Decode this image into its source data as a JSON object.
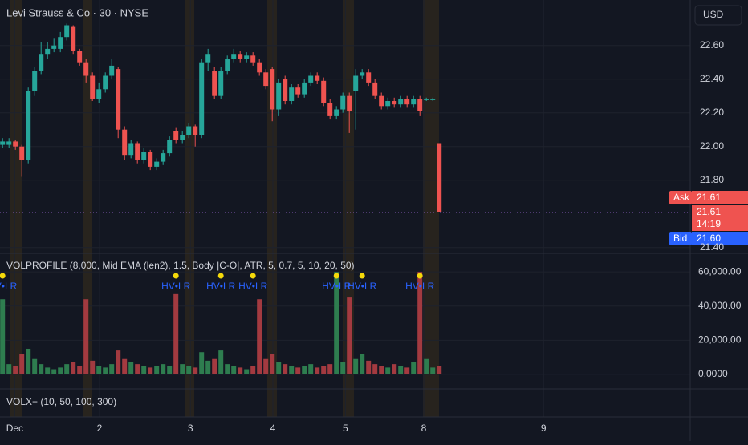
{
  "chart_data": [
    {
      "type": "candlestick",
      "title": "Levi Strauss & Co · 30 · NYSE",
      "open": [
        22.01,
        22.01,
        22.03,
        22.0,
        21.92,
        22.33,
        22.45,
        22.55,
        22.58,
        22.58,
        22.65,
        22.71,
        22.57,
        22.5,
        22.42,
        22.28,
        22.34,
        22.42,
        22.46,
        22.1,
        21.95,
        22.02,
        21.92,
        21.97,
        21.88,
        21.91,
        21.96,
        22.09,
        22.04,
        22.07,
        22.12,
        22.07,
        22.5,
        22.45,
        22.3,
        22.45,
        22.52,
        22.55,
        22.52,
        22.54,
        22.5,
        22.44,
        22.46,
        22.22,
        22.4,
        22.27,
        22.35,
        22.31,
        22.38,
        22.42,
        22.39,
        22.26,
        22.18,
        22.22,
        22.3,
        22.33,
        22.42,
        22.44,
        22.38,
        22.3,
        22.24,
        22.27,
        22.25,
        22.28,
        22.25,
        22.28,
        22.28,
        22.28,
        22.02
      ],
      "high": [
        22.05,
        22.05,
        22.04,
        22.01,
        22.35,
        22.47,
        22.62,
        22.62,
        22.64,
        22.68,
        22.73,
        22.72,
        22.58,
        22.52,
        22.44,
        22.38,
        22.44,
        22.52,
        22.47,
        22.12,
        22.04,
        22.03,
        21.99,
        21.98,
        21.93,
        21.98,
        22.06,
        22.11,
        22.09,
        22.14,
        22.13,
        22.52,
        22.58,
        22.47,
        22.47,
        22.54,
        22.58,
        22.57,
        22.56,
        22.56,
        22.52,
        22.46,
        22.47,
        22.4,
        22.42,
        22.37,
        22.37,
        22.4,
        22.44,
        22.44,
        22.41,
        22.28,
        22.24,
        22.32,
        22.32,
        22.46,
        22.46,
        22.46,
        22.4,
        22.32,
        22.29,
        22.29,
        22.3,
        22.3,
        22.3,
        22.3,
        22.29,
        22.29,
        22.02
      ],
      "low": [
        21.99,
        21.99,
        21.98,
        21.82,
        21.9,
        22.3,
        22.43,
        22.52,
        22.56,
        22.56,
        22.63,
        22.55,
        22.48,
        22.38,
        22.27,
        22.26,
        22.32,
        22.4,
        22.05,
        21.92,
        21.93,
        21.9,
        21.9,
        21.86,
        21.86,
        21.89,
        21.94,
        22.02,
        22.02,
        22.05,
        22.0,
        22.05,
        22.45,
        22.28,
        22.28,
        22.43,
        22.5,
        22.5,
        22.5,
        22.48,
        22.42,
        22.34,
        22.15,
        22.18,
        22.25,
        22.25,
        22.29,
        22.29,
        22.36,
        22.37,
        22.24,
        22.16,
        22.16,
        22.2,
        22.08,
        22.1,
        22.4,
        22.36,
        22.28,
        22.22,
        22.22,
        22.23,
        22.23,
        22.23,
        22.23,
        22.18,
        22.27,
        22.27,
        21.61
      ],
      "close": [
        22.03,
        22.03,
        22.0,
        21.92,
        22.33,
        22.45,
        22.55,
        22.58,
        22.6,
        22.65,
        22.72,
        22.57,
        22.5,
        22.42,
        22.28,
        22.34,
        22.42,
        22.48,
        22.1,
        21.95,
        22.02,
        21.92,
        21.97,
        21.88,
        21.91,
        21.96,
        22.04,
        22.04,
        22.07,
        22.12,
        22.07,
        22.5,
        22.55,
        22.3,
        22.45,
        22.52,
        22.55,
        22.52,
        22.54,
        22.5,
        22.44,
        22.36,
        22.22,
        22.38,
        22.27,
        22.35,
        22.31,
        22.38,
        22.42,
        22.39,
        22.26,
        22.18,
        22.22,
        22.3,
        22.21,
        22.42,
        22.44,
        22.38,
        22.3,
        22.24,
        22.27,
        22.25,
        22.28,
        22.25,
        22.28,
        22.21,
        22.28,
        22.28,
        21.61
      ],
      "up_color": "#26a69a",
      "down_color": "#ef5350",
      "xlim": [
        -0.4,
        107.1
      ],
      "xticks": [
        {
          "value": 1.9,
          "label": "Dec"
        },
        {
          "value": 15.1,
          "label": "2"
        },
        {
          "value": 29.25,
          "label": "3"
        },
        {
          "value": 42.1,
          "label": "4"
        },
        {
          "value": 53.4,
          "label": "5"
        },
        {
          "value": 65.6,
          "label": "8"
        },
        {
          "value": 84.25,
          "label": "9"
        }
      ],
      "ylim": [
        21.37,
        22.87
      ],
      "yticks": [
        {
          "value": 21.4,
          "label": "21.40"
        },
        {
          "value": 21.8,
          "label": "21.80"
        },
        {
          "value": 22.0,
          "label": "22.00"
        },
        {
          "value": 22.2,
          "label": "22.20"
        },
        {
          "value": 22.4,
          "label": "22.40"
        },
        {
          "value": 22.6,
          "label": "22.60"
        }
      ],
      "grid": true
    },
    {
      "type": "bar",
      "title": "VOLPROFILE (8,000, Mid EMA (len2), 1.5, Body |C-O|, ATR, 5, 0.7, 5, 10, 20, 50)",
      "values": [
        44000,
        6000,
        5000,
        12000,
        15000,
        9000,
        6000,
        4000,
        3000,
        4000,
        6000,
        7000,
        5000,
        44000,
        8000,
        5000,
        4000,
        6000,
        14000,
        9000,
        7000,
        6000,
        5000,
        4000,
        5000,
        6000,
        5000,
        47000,
        6000,
        5000,
        4000,
        13000,
        8000,
        9000,
        14000,
        6000,
        5000,
        4000,
        3000,
        5000,
        44000,
        9000,
        12000,
        7000,
        6000,
        5000,
        4000,
        5000,
        6000,
        4000,
        5000,
        6000,
        60000,
        7000,
        45000,
        9000,
        12000,
        8000,
        6000,
        5000,
        4000,
        6000,
        5000,
        4000,
        7000,
        60000,
        9000,
        4000,
        5000
      ],
      "up_color": "#2e7d4f",
      "down_color": "#a33a40",
      "ylim": [
        -8500,
        69000
      ],
      "yticks": [
        {
          "value": 0,
          "label": "0.0000"
        },
        {
          "value": 20000,
          "label": "20,000.00"
        },
        {
          "value": 40000,
          "label": "40,000.00"
        },
        {
          "value": 60000,
          "label": "60,000.00"
        }
      ],
      "annotations": [
        {
          "x": 0,
          "text": "HV•LR"
        },
        {
          "x": 27,
          "text": "HV•LR"
        },
        {
          "x": 34,
          "text": "HV•LR"
        },
        {
          "x": 39,
          "text": "HV•LR"
        },
        {
          "x": 52,
          "text": "HV•LR"
        },
        {
          "x": 56,
          "text": "HV•LR"
        },
        {
          "x": 65,
          "text": "HV•LR"
        }
      ],
      "marker_color": "#f5d90a",
      "label_color": "#2962ff"
    }
  ],
  "ui": {
    "currency": "USD",
    "ask_label": "Ask",
    "ask": "21.61",
    "last": "21.61",
    "countdown": "14:19",
    "bid_label": "Bid",
    "bid": "21.60",
    "indicator2": "VOLX+ (10, 50, 100, 300)"
  }
}
